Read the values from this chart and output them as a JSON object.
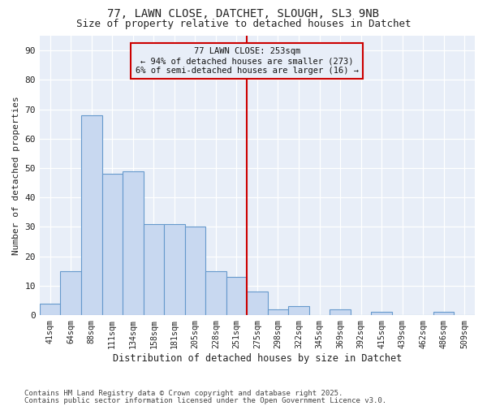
{
  "title1": "77, LAWN CLOSE, DATCHET, SLOUGH, SL3 9NB",
  "title2": "Size of property relative to detached houses in Datchet",
  "xlabel": "Distribution of detached houses by size in Datchet",
  "ylabel": "Number of detached properties",
  "bar_labels": [
    "41sqm",
    "64sqm",
    "88sqm",
    "111sqm",
    "134sqm",
    "158sqm",
    "181sqm",
    "205sqm",
    "228sqm",
    "251sqm",
    "275sqm",
    "298sqm",
    "322sqm",
    "345sqm",
    "369sqm",
    "392sqm",
    "415sqm",
    "439sqm",
    "462sqm",
    "486sqm",
    "509sqm"
  ],
  "bar_heights": [
    4,
    15,
    68,
    48,
    49,
    31,
    31,
    30,
    15,
    13,
    8,
    2,
    3,
    0,
    2,
    0,
    1,
    0,
    0,
    1,
    0
  ],
  "bar_color": "#c8d8f0",
  "bar_edge_color": "#6699cc",
  "annotation_title": "77 LAWN CLOSE: 253sqm",
  "annotation_line1": "← 94% of detached houses are smaller (273)",
  "annotation_line2": "6% of semi-detached houses are larger (16) →",
  "annotation_box_color": "#cc0000",
  "ylim": [
    0,
    95
  ],
  "yticks": [
    0,
    10,
    20,
    30,
    40,
    50,
    60,
    70,
    80,
    90
  ],
  "footer1": "Contains HM Land Registry data © Crown copyright and database right 2025.",
  "footer2": "Contains public sector information licensed under the Open Government Licence v3.0.",
  "bg_color": "#ffffff",
  "plot_bg_color": "#e8eef8",
  "grid_color": "#ffffff",
  "font_color": "#222222"
}
